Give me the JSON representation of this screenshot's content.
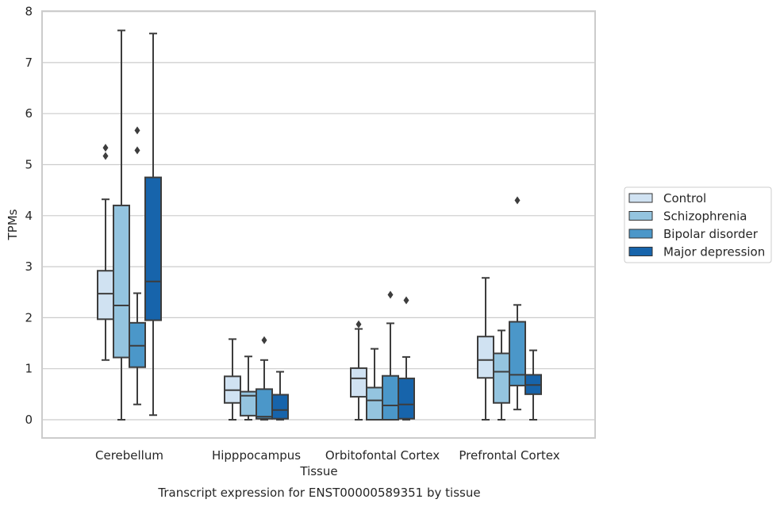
{
  "caption": "Transcript expression for ENST00000589351 by tissue",
  "chart_data": {
    "type": "box",
    "title": "",
    "xlabel": "Tissue",
    "ylabel": "TPMs",
    "ylim": [
      -0.35,
      8
    ],
    "yticks": [
      0,
      1,
      2,
      3,
      4,
      5,
      6,
      7,
      8
    ],
    "grid": "horizontal",
    "legend_position": "right",
    "categories": [
      "Cerebellum",
      "Hipppocampus",
      "Orbitofontal Cortex",
      "Prefrontal Cortex"
    ],
    "colors": [
      "#d0e2f2",
      "#94c4df",
      "#4b97c9",
      "#1764ab"
    ],
    "series": [
      {
        "name": "Control",
        "boxes": [
          {
            "whisker_low": 1.17,
            "q1": 1.97,
            "median": 2.47,
            "q3": 2.92,
            "whisker_high": 4.32,
            "outliers": [
              5.17,
              5.33
            ]
          },
          {
            "whisker_low": 0.0,
            "q1": 0.33,
            "median": 0.58,
            "q3": 0.85,
            "whisker_high": 1.58,
            "outliers": []
          },
          {
            "whisker_low": 0.0,
            "q1": 0.45,
            "median": 0.81,
            "q3": 1.01,
            "whisker_high": 1.78,
            "outliers": [
              1.87
            ]
          },
          {
            "whisker_low": 0.0,
            "q1": 0.82,
            "median": 1.17,
            "q3": 1.63,
            "whisker_high": 2.78,
            "outliers": []
          }
        ]
      },
      {
        "name": "Schizophrenia",
        "boxes": [
          {
            "whisker_low": 0.0,
            "q1": 1.22,
            "median": 2.24,
            "q3": 4.2,
            "whisker_high": 7.63,
            "outliers": []
          },
          {
            "whisker_low": 0.0,
            "q1": 0.08,
            "median": 0.47,
            "q3": 0.55,
            "whisker_high": 1.24,
            "outliers": []
          },
          {
            "whisker_low": 0.0,
            "q1": 0.0,
            "median": 0.38,
            "q3": 0.63,
            "whisker_high": 1.39,
            "outliers": []
          },
          {
            "whisker_low": 0.0,
            "q1": 0.33,
            "median": 0.94,
            "q3": 1.3,
            "whisker_high": 1.75,
            "outliers": []
          }
        ]
      },
      {
        "name": "Bipolar disorder",
        "boxes": [
          {
            "whisker_low": 0.3,
            "q1": 1.03,
            "median": 1.45,
            "q3": 1.9,
            "whisker_high": 2.48,
            "outliers": [
              5.28,
              5.67
            ]
          },
          {
            "whisker_low": 0.0,
            "q1": 0.02,
            "median": 0.06,
            "q3": 0.6,
            "whisker_high": 1.17,
            "outliers": [
              1.56
            ]
          },
          {
            "whisker_low": 0.0,
            "q1": 0.0,
            "median": 0.28,
            "q3": 0.86,
            "whisker_high": 1.89,
            "outliers": [
              2.45
            ]
          },
          {
            "whisker_low": 0.2,
            "q1": 0.67,
            "median": 0.88,
            "q3": 1.92,
            "whisker_high": 2.25,
            "outliers": [
              4.3
            ]
          }
        ]
      },
      {
        "name": "Major depression",
        "boxes": [
          {
            "whisker_low": 0.09,
            "q1": 1.95,
            "median": 2.71,
            "q3": 4.75,
            "whisker_high": 7.57,
            "outliers": []
          },
          {
            "whisker_low": 0.0,
            "q1": 0.02,
            "median": 0.19,
            "q3": 0.49,
            "whisker_high": 0.94,
            "outliers": []
          },
          {
            "whisker_low": 0.0,
            "q1": 0.02,
            "median": 0.3,
            "q3": 0.81,
            "whisker_high": 1.23,
            "outliers": [
              2.34
            ]
          },
          {
            "whisker_low": 0.0,
            "q1": 0.5,
            "median": 0.68,
            "q3": 0.88,
            "whisker_high": 1.36,
            "outliers": []
          }
        ]
      }
    ]
  }
}
